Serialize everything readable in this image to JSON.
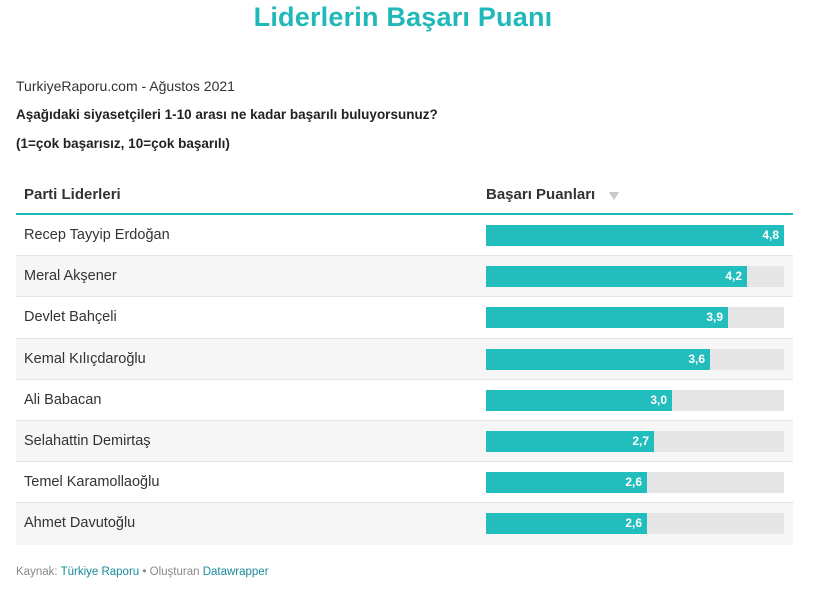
{
  "header": {
    "title": "Liderlerin Başarı Puanı",
    "source_line": "TurkiyeRaporu.com - Ağustos 2021",
    "question": "Aşağıdaki siyasetçileri 1-10 arası ne kadar başarılı buluyorsunuz?",
    "scale_note": "(1=çok başarısız, 10=çok başarılı)"
  },
  "table": {
    "col_name": "Parti Liderleri",
    "col_score": "Başarı Puanları",
    "sort_icon": "sort-down-icon"
  },
  "chart_data": {
    "type": "bar",
    "title": "Liderlerin Başarı Puanı",
    "categories": [
      "Recep Tayyip Erdoğan",
      "Meral Akşener",
      "Devlet Bahçeli",
      "Kemal Kılıçdaroğlu",
      "Ali Babacan",
      "Selahattin Demirtaş",
      "Temel Karamollaoğlu",
      "Ahmet Davutoğlu"
    ],
    "values": [
      4.8,
      4.2,
      3.9,
      3.6,
      3.0,
      2.7,
      2.6,
      2.6
    ],
    "value_labels": [
      "4,8",
      "4,2",
      "3,9",
      "3,6",
      "3,0",
      "2,7",
      "2,6",
      "2,6"
    ],
    "xlim": [
      0,
      4.8
    ],
    "bar_color": "#22bdbd",
    "track_color": "#e6e6e6",
    "orientation": "horizontal"
  },
  "footer": {
    "source_label": "Kaynak:",
    "source_name": "Türkiye Raporu",
    "separator": "•",
    "made_with_label": "Oluşturan",
    "made_with_name": "Datawrapper"
  }
}
